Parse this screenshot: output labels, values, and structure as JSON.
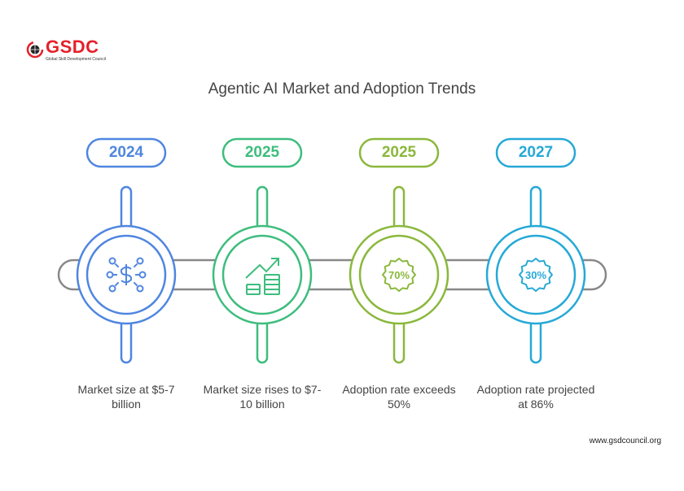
{
  "logo": {
    "text": "GSDC",
    "subtitle": "Global Skill Development Council"
  },
  "title": "Agentic AI Market and Adoption Trends",
  "milestones": [
    {
      "year": "2024",
      "description": "Market size at $5-7 billion",
      "icon": "money-network-icon",
      "color": "#4f86e0"
    },
    {
      "year": "2025",
      "description": "Market size rises to $7-10 billion",
      "icon": "growth-coins-icon",
      "color": "#3dbd7d"
    },
    {
      "year": "2025",
      "description": "Adoption rate exceeds 50%",
      "icon": "percent-badge-icon",
      "badge": "70%",
      "color": "#8ab83c"
    },
    {
      "year": "2027",
      "description": "Adoption rate projected at 86%",
      "icon": "percent-badge-icon",
      "badge": "30%",
      "color": "#25a9d6"
    }
  ],
  "footer": "www.gsdcouncil.org"
}
